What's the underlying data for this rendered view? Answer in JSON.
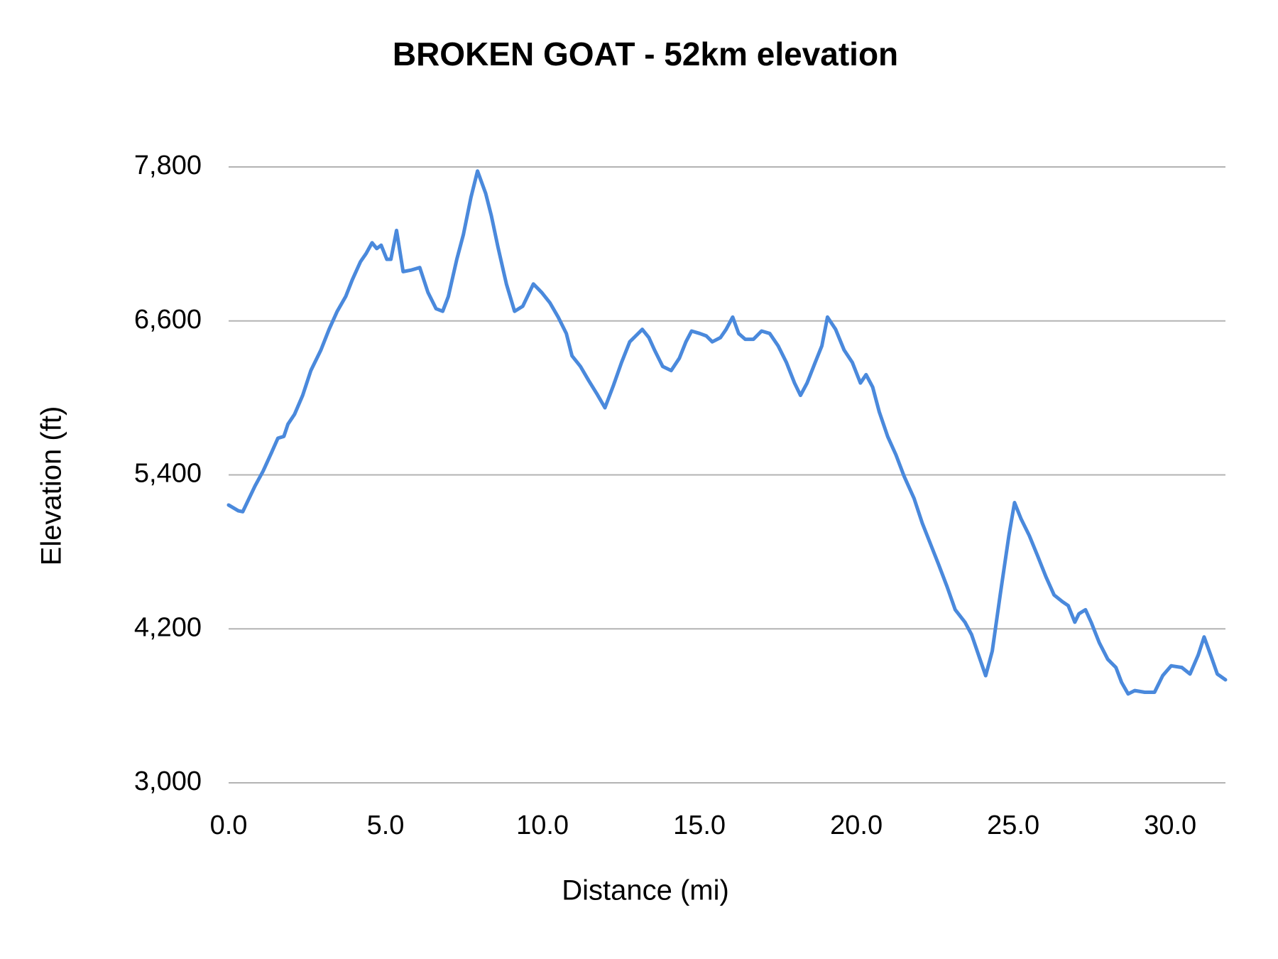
{
  "chart_data": {
    "type": "line",
    "title": "BROKEN GOAT - 52km elevation",
    "x_label": "Distance (mi)",
    "y_label": "Elevation (ft)",
    "xlim": [
      0,
      31.76
    ],
    "ylim": [
      3000,
      7800
    ],
    "xticks": [
      {
        "value": 0,
        "label": "0.0"
      },
      {
        "value": 5,
        "label": "5.0"
      },
      {
        "value": 10,
        "label": "10.0"
      },
      {
        "value": 15,
        "label": "15.0"
      },
      {
        "value": 20,
        "label": "20.0"
      },
      {
        "value": 25,
        "label": "25.0"
      },
      {
        "value": 30,
        "label": "30.0"
      }
    ],
    "yticks": [
      {
        "value": 3000,
        "label": "3,000"
      },
      {
        "value": 4200,
        "label": "4,200"
      },
      {
        "value": 5400,
        "label": "5,400"
      },
      {
        "value": 6600,
        "label": "6,600"
      },
      {
        "value": 7800,
        "label": "7,800"
      }
    ],
    "grid": true,
    "x": [
      0,
      0.31,
      0.45,
      0.84,
      1.1,
      1.36,
      1.57,
      1.76,
      1.89,
      2.1,
      2.36,
      2.62,
      2.94,
      3.2,
      3.46,
      3.73,
      3.94,
      4.2,
      4.38,
      4.57,
      4.72,
      4.86,
      5.04,
      5.17,
      5.35,
      5.56,
      5.83,
      6.09,
      6.35,
      6.61,
      6.82,
      7.0,
      7.27,
      7.48,
      7.72,
      7.93,
      8.19,
      8.37,
      8.58,
      8.85,
      9.11,
      9.37,
      9.71,
      9.97,
      10.24,
      10.5,
      10.76,
      10.94,
      11.21,
      11.47,
      11.73,
      11.99,
      12.26,
      12.52,
      12.78,
      12.97,
      13.18,
      13.39,
      13.57,
      13.83,
      14.1,
      14.36,
      14.57,
      14.75,
      15.01,
      15.22,
      15.41,
      15.67,
      15.85,
      16.06,
      16.25,
      16.46,
      16.72,
      16.98,
      17.24,
      17.51,
      17.77,
      18.03,
      18.22,
      18.43,
      18.69,
      18.9,
      19.08,
      19.34,
      19.61,
      19.87,
      20.13,
      20.31,
      20.52,
      20.73,
      21.0,
      21.26,
      21.52,
      21.84,
      22.1,
      22.36,
      22.62,
      22.89,
      23.15,
      23.46,
      23.67,
      23.94,
      24.12,
      24.33,
      24.59,
      24.86,
      25.04,
      25.25,
      25.51,
      25.78,
      26.04,
      26.3,
      26.56,
      26.75,
      26.96,
      27.09,
      27.3,
      27.48,
      27.74,
      28.01,
      28.27,
      28.45,
      28.66,
      28.87,
      29.19,
      29.5,
      29.76,
      30.03,
      30.37,
      30.63,
      30.89,
      31.08,
      31.29,
      31.5,
      31.76
    ],
    "series": [
      {
        "name": "Elevation",
        "color": "#4a89dc",
        "values": [
          5165,
          5120,
          5113,
          5313,
          5430,
          5570,
          5686,
          5700,
          5795,
          5872,
          6020,
          6213,
          6373,
          6534,
          6675,
          6790,
          6920,
          7061,
          7125,
          7209,
          7164,
          7190,
          7080,
          7080,
          7305,
          6984,
          6997,
          7016,
          6823,
          6695,
          6675,
          6790,
          7080,
          7273,
          7562,
          7768,
          7594,
          7421,
          7177,
          6888,
          6675,
          6714,
          6888,
          6823,
          6740,
          6630,
          6502,
          6328,
          6245,
          6136,
          6033,
          5923,
          6097,
          6277,
          6437,
          6483,
          6534,
          6470,
          6373,
          6245,
          6213,
          6309,
          6437,
          6521,
          6502,
          6483,
          6437,
          6470,
          6534,
          6630,
          6502,
          6457,
          6457,
          6521,
          6502,
          6405,
          6277,
          6116,
          6020,
          6116,
          6277,
          6405,
          6630,
          6534,
          6373,
          6277,
          6116,
          6181,
          6084,
          5891,
          5698,
          5557,
          5390,
          5216,
          5024,
          4863,
          4702,
          4529,
          4349,
          4252,
          4156,
          3963,
          3835,
          4027,
          4477,
          4927,
          5184,
          5056,
          4927,
          4766,
          4606,
          4464,
          4413,
          4381,
          4252,
          4317,
          4349,
          4252,
          4092,
          3963,
          3899,
          3783,
          3693,
          3719,
          3706,
          3706,
          3835,
          3912,
          3899,
          3848,
          3995,
          4137,
          3995,
          3848,
          3803
        ]
      }
    ]
  }
}
